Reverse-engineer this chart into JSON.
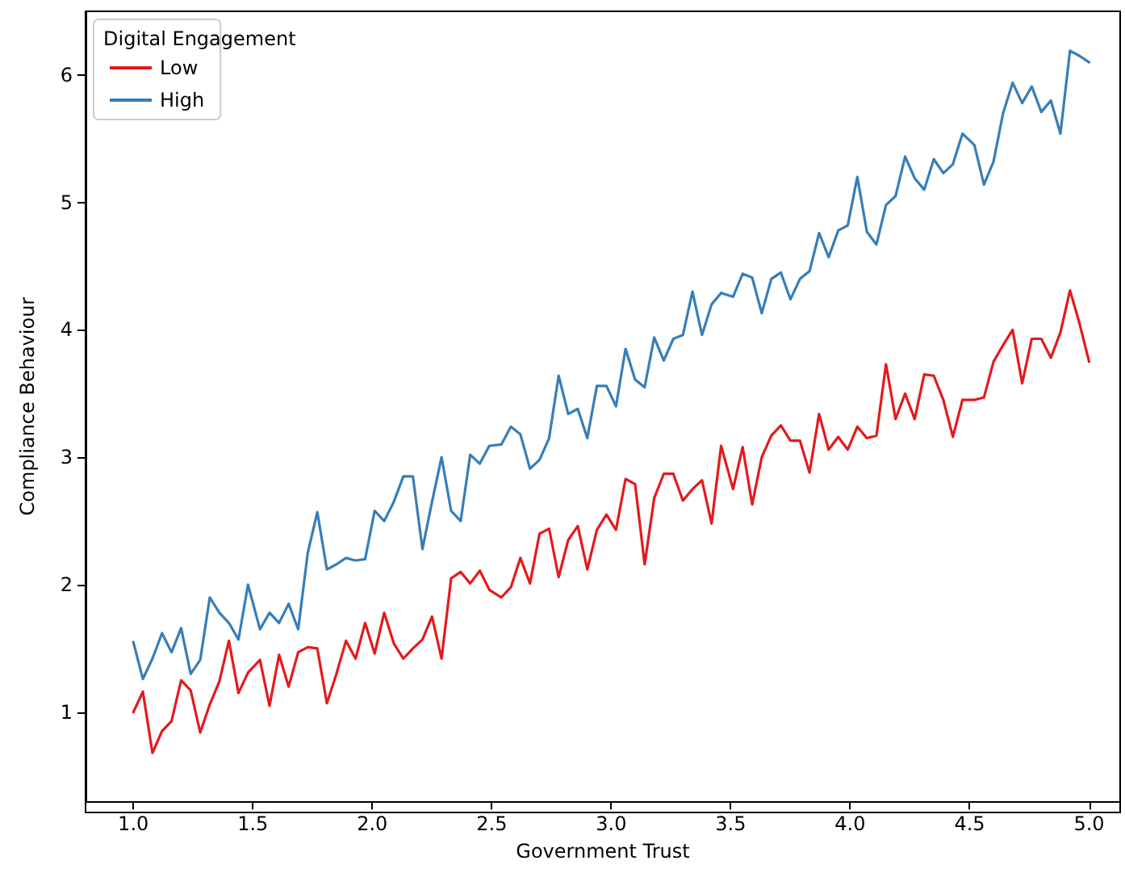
{
  "chart_data": {
    "type": "line",
    "xlabel": "Government Trust",
    "ylabel": "Compliance Behaviour",
    "legend_title": "Digital Engagement",
    "legend": "top left",
    "grid": false,
    "marker": "none",
    "line_style": "solid",
    "x": [
      1.0,
      1.04,
      1.08,
      1.12,
      1.16,
      1.2,
      1.24,
      1.28,
      1.32,
      1.36,
      1.4,
      1.44,
      1.48,
      1.53,
      1.57,
      1.61,
      1.65,
      1.69,
      1.73,
      1.77,
      1.81,
      1.85,
      1.89,
      1.93,
      1.97,
      2.01,
      2.05,
      2.09,
      2.13,
      2.17,
      2.21,
      2.25,
      2.29,
      2.33,
      2.37,
      2.41,
      2.45,
      2.49,
      2.54,
      2.58,
      2.62,
      2.66,
      2.7,
      2.74,
      2.78,
      2.82,
      2.86,
      2.9,
      2.94,
      2.98,
      3.02,
      3.06,
      3.1,
      3.14,
      3.18,
      3.22,
      3.26,
      3.3,
      3.34,
      3.38,
      3.42,
      3.46,
      3.51,
      3.55,
      3.59,
      3.63,
      3.67,
      3.71,
      3.75,
      3.79,
      3.83,
      3.87,
      3.91,
      3.95,
      3.99,
      4.03,
      4.07,
      4.11,
      4.15,
      4.19,
      4.23,
      4.27,
      4.31,
      4.35,
      4.39,
      4.43,
      4.47,
      4.52,
      4.56,
      4.6,
      4.64,
      4.68,
      4.72,
      4.76,
      4.8,
      4.84,
      4.88,
      4.92,
      4.96,
      5.0
    ],
    "series": [
      {
        "name": "Low",
        "color": "#e41a1c",
        "values": [
          1.0,
          1.16,
          0.68,
          0.85,
          0.93,
          1.25,
          1.17,
          0.84,
          1.06,
          1.24,
          1.56,
          1.15,
          1.31,
          1.41,
          1.05,
          1.45,
          1.2,
          1.47,
          1.51,
          1.5,
          1.07,
          1.3,
          1.56,
          1.42,
          1.7,
          1.46,
          1.78,
          1.54,
          1.42,
          1.5,
          1.57,
          1.75,
          1.42,
          2.05,
          2.1,
          2.01,
          2.11,
          1.96,
          1.9,
          1.98,
          2.21,
          2.01,
          2.4,
          2.44,
          2.06,
          2.35,
          2.46,
          2.12,
          2.43,
          2.55,
          2.43,
          2.83,
          2.79,
          2.16,
          2.68,
          2.87,
          2.87,
          2.66,
          2.75,
          2.82,
          2.48,
          3.09,
          2.75,
          3.08,
          2.63,
          3.0,
          3.17,
          3.25,
          3.13,
          3.13,
          2.88,
          3.34,
          3.06,
          3.16,
          3.06,
          3.24,
          3.15,
          3.17,
          3.73,
          3.3,
          3.5,
          3.3,
          3.65,
          3.64,
          3.45,
          3.16,
          3.45,
          3.45,
          3.47,
          3.75,
          3.88,
          4.0,
          3.58,
          3.93,
          3.93,
          3.78,
          3.98,
          4.31,
          4.05,
          3.75
        ]
      },
      {
        "name": "High",
        "color": "#377eb8",
        "values": [
          1.55,
          1.26,
          1.42,
          1.62,
          1.47,
          1.66,
          1.3,
          1.41,
          1.9,
          1.78,
          1.7,
          1.57,
          2.0,
          1.65,
          1.78,
          1.7,
          1.85,
          1.65,
          2.25,
          2.57,
          2.12,
          2.16,
          2.21,
          2.19,
          2.2,
          2.58,
          2.5,
          2.65,
          2.85,
          2.85,
          2.28,
          2.65,
          3.0,
          2.58,
          2.5,
          3.02,
          2.95,
          3.09,
          3.1,
          3.24,
          3.18,
          2.91,
          2.98,
          3.15,
          3.64,
          3.34,
          3.38,
          3.15,
          3.56,
          3.56,
          3.4,
          3.85,
          3.61,
          3.55,
          3.94,
          3.76,
          3.93,
          3.96,
          4.3,
          3.96,
          4.2,
          4.29,
          4.26,
          4.44,
          4.41,
          4.13,
          4.4,
          4.45,
          4.24,
          4.4,
          4.46,
          4.76,
          4.57,
          4.78,
          4.82,
          5.2,
          4.77,
          4.67,
          4.98,
          5.05,
          5.36,
          5.19,
          5.1,
          5.34,
          5.23,
          5.3,
          5.54,
          5.45,
          5.14,
          5.32,
          5.7,
          5.94,
          5.78,
          5.91,
          5.71,
          5.8,
          5.54,
          6.19,
          6.15,
          6.1
        ]
      }
    ],
    "xlim": [
      0.8,
      5.13
    ],
    "ylim": [
      0.3,
      6.5
    ],
    "xticks": [
      {
        "value": 1,
        "label": "1.0"
      },
      {
        "value": 1.5,
        "label": "1.5"
      },
      {
        "value": 2,
        "label": "2.0"
      },
      {
        "value": 2.5,
        "label": "2.5"
      },
      {
        "value": 3,
        "label": "3.0"
      },
      {
        "value": 3.5,
        "label": "3.5"
      },
      {
        "value": 4,
        "label": "4.0"
      },
      {
        "value": 4.5,
        "label": "4.5"
      },
      {
        "value": 5,
        "label": "5.0"
      }
    ],
    "yticks": [
      1,
      2,
      3,
      4,
      5,
      6
    ]
  }
}
